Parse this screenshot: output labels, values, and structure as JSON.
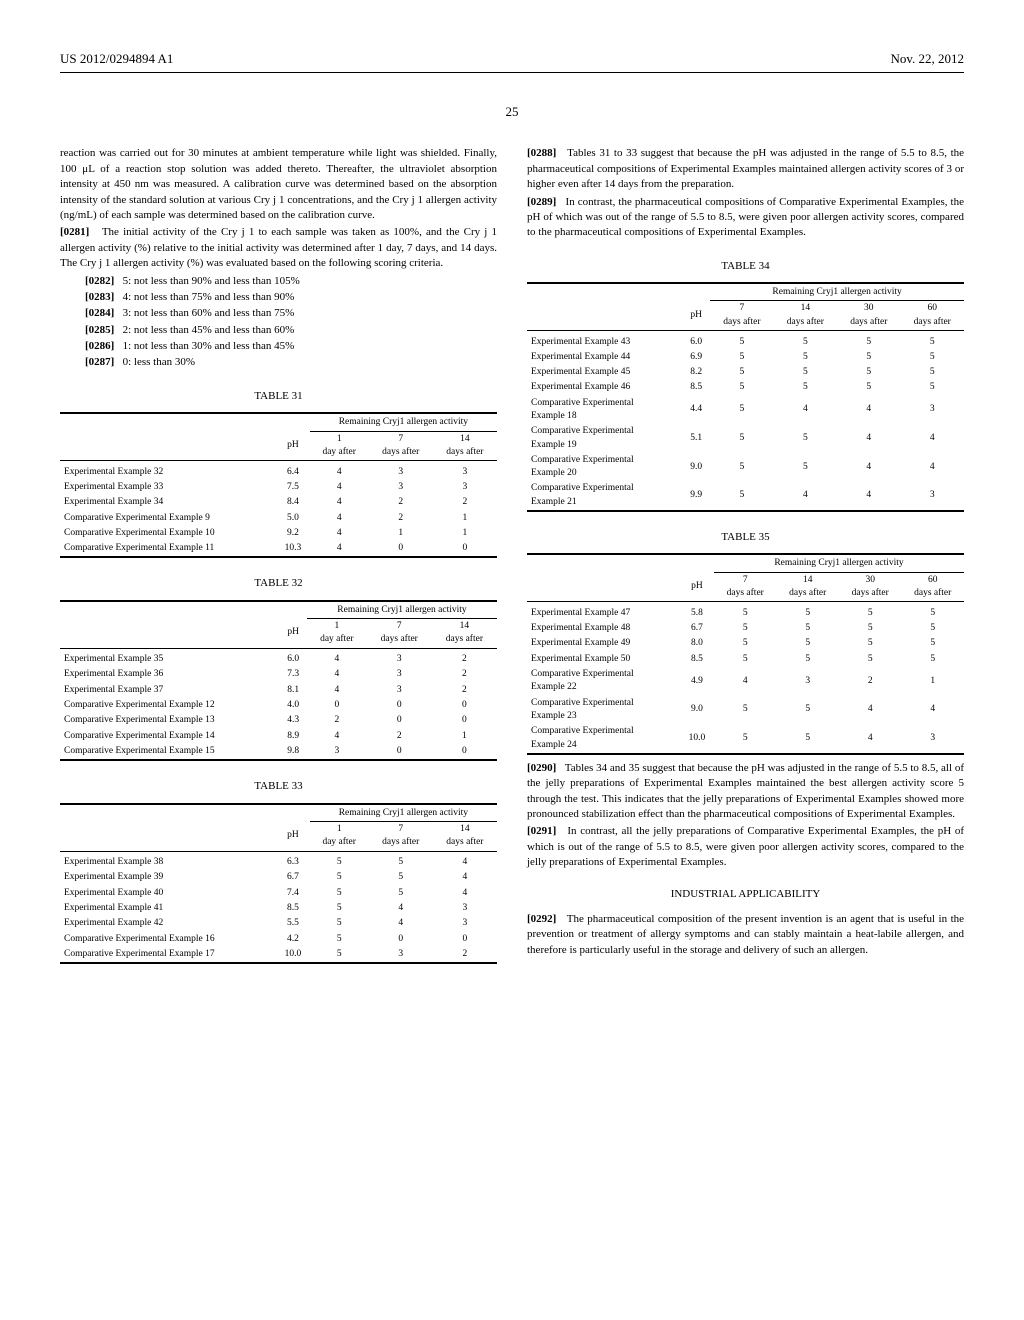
{
  "header": {
    "patent_number": "US 2012/0294894 A1",
    "date": "Nov. 22, 2012"
  },
  "page_number": "25",
  "left_column": {
    "continuation": "reaction was carried out for 30 minutes at ambient temperature while light was shielded. Finally, 100 μL of a reaction stop solution was added thereto. Thereafter, the ultraviolet absorption intensity at 450 nm was measured. A calibration curve was determined based on the absorption intensity of the standard solution at various Cry j 1 concentrations, and the Cry j 1 allergen activity (ng/mL) of each sample was determined based on the calibration curve.",
    "p0281_num": "[0281]",
    "p0281": "The initial activity of the Cry j 1 to each sample was taken as 100%, and the Cry j 1 allergen activity (%) relative to the initial activity was determined after 1 day, 7 days, and 14 days. The Cry j 1 allergen activity (%) was evaluated based on the following scoring criteria.",
    "scores": [
      {
        "num": "[0282]",
        "text": "5: not less than 90% and less than 105%"
      },
      {
        "num": "[0283]",
        "text": "4: not less than 75% and less than 90%"
      },
      {
        "num": "[0284]",
        "text": "3: not less than 60% and less than 75%"
      },
      {
        "num": "[0285]",
        "text": "2: not less than 45% and less than 60%"
      },
      {
        "num": "[0286]",
        "text": "1: not less than 30% and less than 45%"
      },
      {
        "num": "[0287]",
        "text": "0: less than 30%"
      }
    ],
    "table31_caption": "TABLE 31",
    "table31_subhead": "Remaining Cryj1 allergen activity",
    "table31_cols": [
      "pH",
      "1 day after",
      "7 days after",
      "14 days after"
    ],
    "table31_rows": [
      {
        "label": "Experimental Example 32",
        "vals": [
          "6.4",
          "4",
          "3",
          "3"
        ]
      },
      {
        "label": "Experimental Example 33",
        "vals": [
          "7.5",
          "4",
          "3",
          "3"
        ]
      },
      {
        "label": "Experimental Example 34",
        "vals": [
          "8.4",
          "4",
          "2",
          "2"
        ]
      },
      {
        "label": "Comparative Experimental Example 9",
        "vals": [
          "5.0",
          "4",
          "2",
          "1"
        ]
      },
      {
        "label": "Comparative Experimental Example 10",
        "vals": [
          "9.2",
          "4",
          "1",
          "1"
        ]
      },
      {
        "label": "Comparative Experimental Example 11",
        "vals": [
          "10.3",
          "4",
          "0",
          "0"
        ]
      }
    ],
    "table32_caption": "TABLE 32",
    "table32_subhead": "Remaining Cryj1 allergen activity",
    "table32_cols": [
      "pH",
      "1 day after",
      "7 days after",
      "14 days after"
    ],
    "table32_rows": [
      {
        "label": "Experimental Example 35",
        "vals": [
          "6.0",
          "4",
          "3",
          "2"
        ]
      },
      {
        "label": "Experimental Example 36",
        "vals": [
          "7.3",
          "4",
          "3",
          "2"
        ]
      },
      {
        "label": "Experimental Example 37",
        "vals": [
          "8.1",
          "4",
          "3",
          "2"
        ]
      },
      {
        "label": "Comparative Experimental Example 12",
        "vals": [
          "4.0",
          "0",
          "0",
          "0"
        ]
      },
      {
        "label": "Comparative Experimental Example 13",
        "vals": [
          "4.3",
          "2",
          "0",
          "0"
        ]
      },
      {
        "label": "Comparative Experimental Example 14",
        "vals": [
          "8.9",
          "4",
          "2",
          "1"
        ]
      },
      {
        "label": "Comparative Experimental Example 15",
        "vals": [
          "9.8",
          "3",
          "0",
          "0"
        ]
      }
    ],
    "table33_caption": "TABLE 33",
    "table33_subhead": "Remaining Cryj1 allergen activity",
    "table33_cols": [
      "pH",
      "1 day after",
      "7 days after",
      "14 days after"
    ],
    "table33_rows": [
      {
        "label": "Experimental Example 38",
        "vals": [
          "6.3",
          "5",
          "5",
          "4"
        ]
      },
      {
        "label": "Experimental Example 39",
        "vals": [
          "6.7",
          "5",
          "5",
          "4"
        ]
      },
      {
        "label": "Experimental Example 40",
        "vals": [
          "7.4",
          "5",
          "5",
          "4"
        ]
      },
      {
        "label": "Experimental Example 41",
        "vals": [
          "8.5",
          "5",
          "4",
          "3"
        ]
      },
      {
        "label": "Experimental Example 42",
        "vals": [
          "5.5",
          "5",
          "4",
          "3"
        ]
      },
      {
        "label": "Comparative Experimental Example 16",
        "vals": [
          "4.2",
          "5",
          "0",
          "0"
        ]
      },
      {
        "label": "Comparative Experimental Example 17",
        "vals": [
          "10.0",
          "5",
          "3",
          "2"
        ]
      }
    ]
  },
  "right_column": {
    "p0288_num": "[0288]",
    "p0288": "Tables 31 to 33 suggest that because the pH was adjusted in the range of 5.5 to 8.5, the pharmaceutical compositions of Experimental Examples maintained allergen activity scores of 3 or higher even after 14 days from the preparation.",
    "p0289_num": "[0289]",
    "p0289": "In contrast, the pharmaceutical compositions of Comparative Experimental Examples, the pH of which was out of the range of 5.5 to 8.5, were given poor allergen activity scores, compared to the pharmaceutical compositions of Experimental Examples.",
    "table34_caption": "TABLE 34",
    "table34_subhead": "Remaining Cryj1 allergen activity",
    "table34_cols": [
      "pH",
      "7 days after",
      "14 days after",
      "30 days after",
      "60 days after"
    ],
    "table34_rows": [
      {
        "label": "Experimental Example 43",
        "vals": [
          "6.0",
          "5",
          "5",
          "5",
          "5"
        ]
      },
      {
        "label": "Experimental Example 44",
        "vals": [
          "6.9",
          "5",
          "5",
          "5",
          "5"
        ]
      },
      {
        "label": "Experimental Example 45",
        "vals": [
          "8.2",
          "5",
          "5",
          "5",
          "5"
        ]
      },
      {
        "label": "Experimental Example 46",
        "vals": [
          "8.5",
          "5",
          "5",
          "5",
          "5"
        ]
      },
      {
        "label": "Comparative Experimental Example 18",
        "vals": [
          "4.4",
          "5",
          "4",
          "4",
          "3"
        ]
      },
      {
        "label": "Comparative Experimental Example 19",
        "vals": [
          "5.1",
          "5",
          "5",
          "4",
          "4"
        ]
      },
      {
        "label": "Comparative Experimental Example 20",
        "vals": [
          "9.0",
          "5",
          "5",
          "4",
          "4"
        ]
      },
      {
        "label": "Comparative Experimental Example 21",
        "vals": [
          "9.9",
          "5",
          "4",
          "4",
          "3"
        ]
      }
    ],
    "table35_caption": "TABLE 35",
    "table35_subhead": "Remaining Cryj1 allergen activity",
    "table35_cols": [
      "pH",
      "7 days after",
      "14 days after",
      "30 days after",
      "60 days after"
    ],
    "table35_rows": [
      {
        "label": "Experimental Example 47",
        "vals": [
          "5.8",
          "5",
          "5",
          "5",
          "5"
        ]
      },
      {
        "label": "Experimental Example 48",
        "vals": [
          "6.7",
          "5",
          "5",
          "5",
          "5"
        ]
      },
      {
        "label": "Experimental Example 49",
        "vals": [
          "8.0",
          "5",
          "5",
          "5",
          "5"
        ]
      },
      {
        "label": "Experimental Example 50",
        "vals": [
          "8.5",
          "5",
          "5",
          "5",
          "5"
        ]
      },
      {
        "label": "Comparative Experimental Example 22",
        "vals": [
          "4.9",
          "4",
          "3",
          "2",
          "1"
        ]
      },
      {
        "label": "Comparative Experimental Example 23",
        "vals": [
          "9.0",
          "5",
          "5",
          "4",
          "4"
        ]
      },
      {
        "label": "Comparative Experimental Example 24",
        "vals": [
          "10.0",
          "5",
          "5",
          "4",
          "3"
        ]
      }
    ],
    "p0290_num": "[0290]",
    "p0290": "Tables 34 and 35 suggest that because the pH was adjusted in the range of 5.5 to 8.5, all of the jelly preparations of Experimental Examples maintained the best allergen activity score 5 through the test. This indicates that the jelly preparations of Experimental Examples showed more pronounced stabilization effect than the pharmaceutical compositions of Experimental Examples.",
    "p0291_num": "[0291]",
    "p0291": "In contrast, all the jelly preparations of Comparative Experimental Examples, the pH of which is out of the range of 5.5 to 8.5, were given poor allergen activity scores, compared to the jelly preparations of Experimental Examples.",
    "industrial_heading": "INDUSTRIAL APPLICABILITY",
    "p0292_num": "[0292]",
    "p0292": "The pharmaceutical composition of the present invention is an agent that is useful in the prevention or treatment of allergy symptoms and can stably maintain a heat-labile allergen, and therefore is particularly useful in the storage and delivery of such an allergen."
  }
}
